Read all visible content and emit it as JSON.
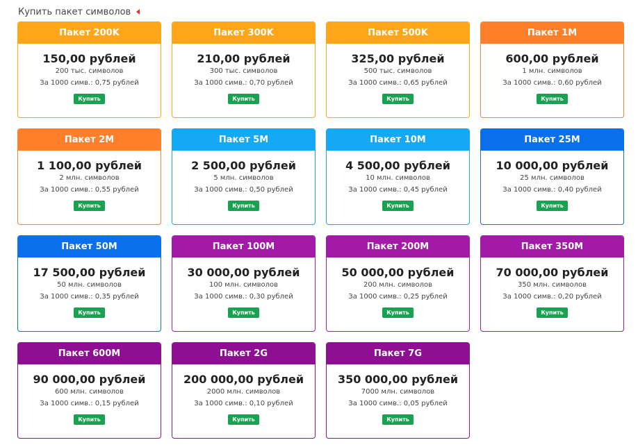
{
  "header": {
    "title": "Купить пакет символов"
  },
  "colors": {
    "orange": "#ffa51a",
    "dark_orange": "#ff7f2a",
    "light_blue": "#15a8f5",
    "blue": "#0a6fea",
    "purple": "#a31aa8",
    "dark_purple": "#8e1092",
    "buy_green": "#1aa253"
  },
  "packages": [
    {
      "name": "Пакет 200K",
      "price": "150,00 рублей",
      "amount": "200 тыс. символов",
      "per_thousand": "За 1000 симв.: 0,75 рублей",
      "buy_label": "Купить",
      "color": "#ffa51a"
    },
    {
      "name": "Пакет 300K",
      "price": "210,00 рублей",
      "amount": "300 тыс. символов",
      "per_thousand": "За 1000 симв.: 0,70 рублей",
      "buy_label": "Купить",
      "color": "#ffa51a"
    },
    {
      "name": "Пакет 500K",
      "price": "325,00 рублей",
      "amount": "500 тыс. символов",
      "per_thousand": "За 1000 симв.: 0,65 рублей",
      "buy_label": "Купить",
      "color": "#ffa51a"
    },
    {
      "name": "Пакет 1M",
      "price": "600,00 рублей",
      "amount": "1 млн. символов",
      "per_thousand": "За 1000 симв.: 0,60 рублей",
      "buy_label": "Купить",
      "color": "#ff7f2a"
    },
    {
      "name": "Пакет 2M",
      "price": "1 100,00 рублей",
      "amount": "2 млн. символов",
      "per_thousand": "За 1000 симв.: 0,55 рублей",
      "buy_label": "Купить",
      "color": "#ff7f2a"
    },
    {
      "name": "Пакет 5M",
      "price": "2 500,00 рублей",
      "amount": "5 млн. символов",
      "per_thousand": "За 1000 симв.: 0,50 рублей",
      "buy_label": "Купить",
      "color": "#15a8f5"
    },
    {
      "name": "Пакет 10M",
      "price": "4 500,00 рублей",
      "amount": "10 млн. символов",
      "per_thousand": "За 1000 симв.: 0,45 рублей",
      "buy_label": "Купить",
      "color": "#15a8f5"
    },
    {
      "name": "Пакет 25M",
      "price": "10 000,00 рублей",
      "amount": "25 млн. символов",
      "per_thousand": "За 1000 симв.: 0,40 рублей",
      "buy_label": "Купить",
      "color": "#0a6fea"
    },
    {
      "name": "Пакет 50M",
      "price": "17 500,00 рублей",
      "amount": "50 млн. символов",
      "per_thousand": "За 1000 симв.: 0,35 рублей",
      "buy_label": "Купить",
      "color": "#0a6fea"
    },
    {
      "name": "Пакет 100M",
      "price": "30 000,00 рублей",
      "amount": "100 млн. символов",
      "per_thousand": "За 1000 симв.: 0,30 рублей",
      "buy_label": "Купить",
      "color": "#a31aa8"
    },
    {
      "name": "Пакет 200M",
      "price": "50 000,00 рублей",
      "amount": "200 млн. символов",
      "per_thousand": "За 1000 симв.: 0,25 рублей",
      "buy_label": "Купить",
      "color": "#a31aa8"
    },
    {
      "name": "Пакет 350M",
      "price": "70 000,00 рублей",
      "amount": "350 млн. символов",
      "per_thousand": "За 1000 симв.: 0,20 рублей",
      "buy_label": "Купить",
      "color": "#a31aa8"
    },
    {
      "name": "Пакет 600M",
      "price": "90 000,00 рублей",
      "amount": "600 млн. символов",
      "per_thousand": "За 1000 симв.: 0,15 рублей",
      "buy_label": "Купить",
      "color": "#8e1092"
    },
    {
      "name": "Пакет 2G",
      "price": "200 000,00 рублей",
      "amount": "2000 млн. символов",
      "per_thousand": "За 1000 симв.: 0,10 рублей",
      "buy_label": "Купить",
      "color": "#8e1092"
    },
    {
      "name": "Пакет 7G",
      "price": "350 000,00 рублей",
      "amount": "7000 млн. символов",
      "per_thousand": "За 1000 симв.: 0,05 рублей",
      "buy_label": "Купить",
      "color": "#8e1092"
    }
  ]
}
